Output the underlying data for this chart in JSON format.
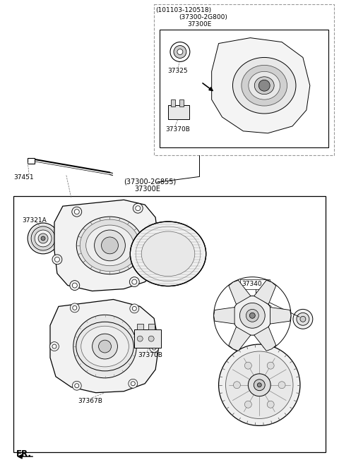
{
  "bg_color": "#ffffff",
  "figsize": [
    4.8,
    6.62
  ],
  "dpi": 100,
  "labels": {
    "top_bracket_date": "(101103-120518)",
    "top_bracket_part1": "(37300-2G800)",
    "top_bracket_part2": "37300E",
    "bolt_label": "37451",
    "main_bracket_part1": "(37300-2G855)",
    "main_bracket_part2": "37300E",
    "pulley_label": "37321A",
    "rotor_label": "37340",
    "regulator_top": "37370B",
    "regulator_main": "37370B",
    "rectifier_label": "37367B",
    "fr_label": "FR.",
    "small_ring_label": "37325"
  }
}
